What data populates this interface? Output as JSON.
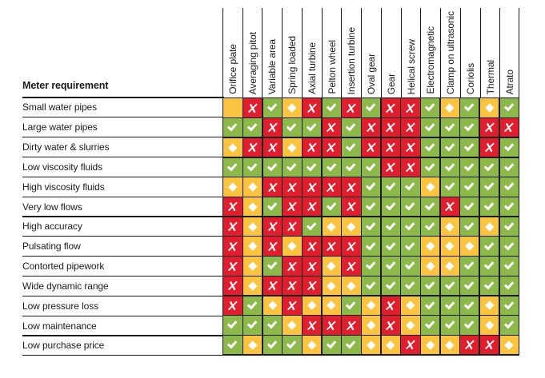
{
  "table": {
    "corner_header": "Meter requirement",
    "columns": [
      "Orifice plate",
      "Averaging pitot",
      "Variable area",
      "Spring loaded",
      "Axial turbine",
      "Pelton wheel",
      "Insertion turbine",
      "Oval gear",
      "Gear",
      "Helical screw",
      "Electromagnetic",
      "Clamp on ultrasonic",
      "Coriolis",
      "Thermal",
      "Atrato"
    ],
    "rows": [
      {
        "label": "Small water pipes",
        "cells": [
          "b",
          "n",
          "y",
          "m",
          "n",
          "y",
          "n",
          "y",
          "n",
          "n",
          "y",
          "m",
          "y",
          "m",
          "y"
        ]
      },
      {
        "label": "Large water pipes",
        "cells": [
          "y",
          "y",
          "n",
          "y",
          "y",
          "n",
          "y",
          "n",
          "n",
          "n",
          "y",
          "y",
          "y",
          "n",
          "n"
        ]
      },
      {
        "label": "Dirty water & slurries",
        "cells": [
          "m",
          "n",
          "n",
          "m",
          "n",
          "n",
          "y",
          "n",
          "n",
          "n",
          "y",
          "y",
          "y",
          "n",
          "y"
        ]
      },
      {
        "label": "Low viscosity fluids",
        "cells": [
          "y",
          "y",
          "y",
          "y",
          "y",
          "y",
          "y",
          "y",
          "n",
          "n",
          "y",
          "y",
          "y",
          "y",
          "y"
        ]
      },
      {
        "label": "High viscosity fluids",
        "cells": [
          "m",
          "m",
          "n",
          "n",
          "n",
          "n",
          "n",
          "y",
          "y",
          "y",
          "m",
          "y",
          "y",
          "y",
          "y"
        ]
      },
      {
        "label": "Very low flows",
        "cells": [
          "n",
          "m",
          "y",
          "n",
          "n",
          "y",
          "n",
          "y",
          "y",
          "y",
          "y",
          "n",
          "y",
          "y",
          "y"
        ]
      },
      {
        "label": "High accuracy",
        "cells": [
          "n",
          "m",
          "n",
          "n",
          "y",
          "m",
          "m",
          "y",
          "y",
          "y",
          "y",
          "m",
          "y",
          "m",
          "y"
        ]
      },
      {
        "label": "Pulsating flow",
        "cells": [
          "n",
          "m",
          "n",
          "m",
          "n",
          "n",
          "n",
          "y",
          "y",
          "y",
          "m",
          "m",
          "m",
          "y",
          "y"
        ]
      },
      {
        "label": "Contorted pipework",
        "cells": [
          "n",
          "m",
          "y",
          "n",
          "n",
          "m",
          "n",
          "y",
          "y",
          "y",
          "m",
          "m",
          "y",
          "y",
          "y"
        ]
      },
      {
        "label": "Wide dynamic range",
        "cells": [
          "n",
          "m",
          "n",
          "n",
          "n",
          "m",
          "m",
          "y",
          "y",
          "y",
          "y",
          "y",
          "y",
          "y",
          "y"
        ]
      },
      {
        "label": "Low pressure loss",
        "cells": [
          "n",
          "y",
          "m",
          "n",
          "m",
          "m",
          "y",
          "m",
          "n",
          "m",
          "y",
          "y",
          "y",
          "m",
          "y"
        ]
      },
      {
        "label": "Low maintenance",
        "cells": [
          "y",
          "y",
          "y",
          "m",
          "n",
          "n",
          "n",
          "m",
          "n",
          "m",
          "y",
          "y",
          "y",
          "m",
          "y"
        ]
      },
      {
        "label": "Low purchase price",
        "cells": [
          "y",
          "m",
          "y",
          "y",
          "m",
          "y",
          "y",
          "m",
          "m",
          "n",
          "m",
          "m",
          "n",
          "n",
          "m"
        ]
      }
    ],
    "symbols": {
      "y": "✔",
      "n": "✗",
      "m": "◆",
      "b": ""
    },
    "colors": {
      "y": "#8CB94A",
      "n": "#E01F2E",
      "m": "#FBC440",
      "b": "#FBC440"
    }
  },
  "chart_data": {
    "type": "table",
    "title": "Meter requirement",
    "columns": [
      "Orifice plate",
      "Averaging pitot",
      "Variable area",
      "Spring loaded",
      "Axial turbine",
      "Pelton wheel",
      "Insertion turbine",
      "Oval gear",
      "Gear",
      "Helical screw",
      "Electromagnetic",
      "Clamp on ultrasonic",
      "Coriolis",
      "Thermal",
      "Atrato"
    ],
    "row_labels": [
      "Small water pipes",
      "Large water pipes",
      "Dirty water & slurries",
      "Low viscosity fluids",
      "High viscosity fluids",
      "Very low flows",
      "High accuracy",
      "Pulsating flow",
      "Contorted pipework",
      "Wide dynamic range",
      "Low pressure loss",
      "Low maintenance",
      "Low purchase price"
    ],
    "cell_legend": {
      "y": "green cell with white check mark",
      "n": "red cell with white cross",
      "m": "yellow cell with white diamond",
      "b": "yellow cell with no symbol"
    },
    "values": [
      [
        "b",
        "n",
        "y",
        "m",
        "n",
        "y",
        "n",
        "y",
        "n",
        "n",
        "y",
        "m",
        "y",
        "m",
        "y"
      ],
      [
        "y",
        "y",
        "n",
        "y",
        "y",
        "n",
        "y",
        "n",
        "n",
        "n",
        "y",
        "y",
        "y",
        "n",
        "n"
      ],
      [
        "m",
        "n",
        "n",
        "m",
        "n",
        "n",
        "y",
        "n",
        "n",
        "n",
        "y",
        "y",
        "y",
        "n",
        "y"
      ],
      [
        "y",
        "y",
        "y",
        "y",
        "y",
        "y",
        "y",
        "y",
        "n",
        "n",
        "y",
        "y",
        "y",
        "y",
        "y"
      ],
      [
        "m",
        "m",
        "n",
        "n",
        "n",
        "n",
        "n",
        "y",
        "y",
        "y",
        "m",
        "y",
        "y",
        "y",
        "y"
      ],
      [
        "n",
        "m",
        "y",
        "n",
        "n",
        "y",
        "n",
        "y",
        "y",
        "y",
        "y",
        "n",
        "y",
        "y",
        "y"
      ],
      [
        "n",
        "m",
        "n",
        "n",
        "y",
        "m",
        "m",
        "y",
        "y",
        "y",
        "y",
        "m",
        "y",
        "m",
        "y"
      ],
      [
        "n",
        "m",
        "n",
        "m",
        "n",
        "n",
        "n",
        "y",
        "y",
        "y",
        "m",
        "m",
        "m",
        "y",
        "y"
      ],
      [
        "n",
        "m",
        "y",
        "n",
        "n",
        "m",
        "n",
        "y",
        "y",
        "y",
        "m",
        "m",
        "y",
        "y",
        "y"
      ],
      [
        "n",
        "m",
        "n",
        "n",
        "n",
        "m",
        "m",
        "y",
        "y",
        "y",
        "y",
        "y",
        "y",
        "y",
        "y"
      ],
      [
        "n",
        "y",
        "m",
        "n",
        "m",
        "m",
        "y",
        "m",
        "n",
        "m",
        "y",
        "y",
        "y",
        "m",
        "y"
      ],
      [
        "y",
        "y",
        "y",
        "m",
        "n",
        "n",
        "n",
        "m",
        "n",
        "m",
        "y",
        "y",
        "y",
        "m",
        "y"
      ],
      [
        "y",
        "m",
        "y",
        "y",
        "m",
        "y",
        "y",
        "m",
        "m",
        "n",
        "m",
        "m",
        "n",
        "n",
        "m"
      ]
    ]
  }
}
